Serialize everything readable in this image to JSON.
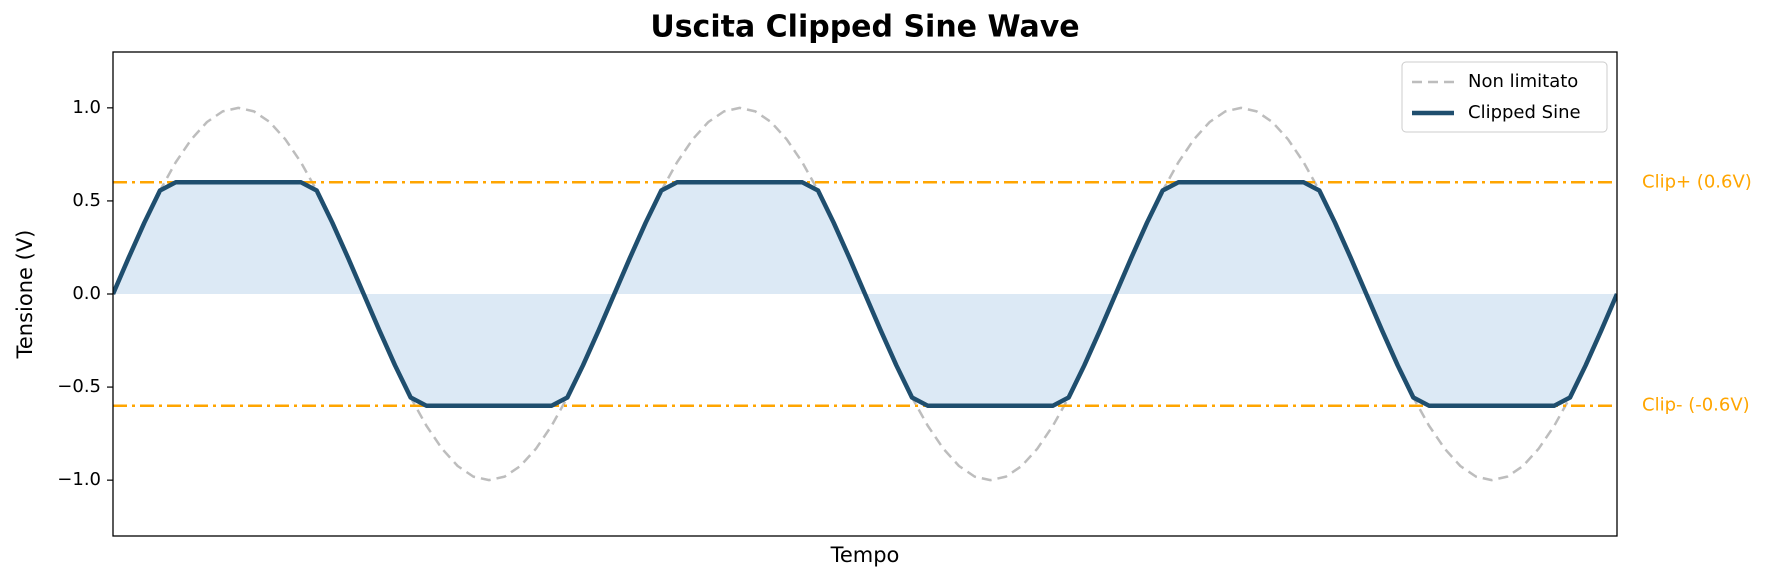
{
  "chart_data": {
    "type": "line",
    "title": "Uscita Clipped Sine Wave",
    "xlabel": "Tempo",
    "ylabel": "Tensione (V)",
    "x": [
      0,
      1,
      2,
      3,
      4,
      5,
      6,
      7,
      8,
      9,
      10,
      11,
      12,
      13,
      14,
      15,
      16,
      17,
      18,
      19,
      20,
      21,
      22,
      23,
      24,
      25,
      26,
      27,
      28,
      29,
      30,
      31,
      32,
      33,
      34,
      35,
      36,
      37,
      38,
      39,
      40,
      41,
      42,
      43,
      44,
      45,
      46,
      47,
      48,
      49,
      50,
      51,
      52,
      53,
      54,
      55,
      56,
      57,
      58,
      59,
      60,
      61,
      62,
      63,
      64,
      65,
      66,
      67,
      68,
      69,
      70,
      71,
      72,
      73,
      74,
      75,
      76,
      77,
      78,
      79,
      80,
      81,
      82,
      83,
      84,
      85,
      86,
      87,
      88,
      89,
      90,
      91,
      92,
      93,
      94,
      95,
      96
    ],
    "xlim": [
      0,
      96
    ],
    "ylim": [
      -1.3,
      1.3
    ],
    "yticks": [
      {
        "value": -1,
        "label": "−1.0"
      },
      {
        "value": -0.5,
        "label": "−0.5"
      },
      {
        "value": 0,
        "label": "0.0"
      },
      {
        "value": 0.5,
        "label": "0.5"
      },
      {
        "value": 1,
        "label": "1.0"
      }
    ],
    "legend": "upper right",
    "series": [
      {
        "name": "Non limitato",
        "color": "#bdbdbd",
        "style": "dashed",
        "width": 2.5,
        "values": [
          0,
          0.195,
          0.383,
          0.556,
          0.707,
          0.831,
          0.924,
          0.981,
          1,
          0.981,
          0.924,
          0.831,
          0.707,
          0.556,
          0.383,
          0.195,
          0,
          -0.195,
          -0.383,
          -0.556,
          -0.707,
          -0.831,
          -0.924,
          -0.981,
          -1,
          -0.981,
          -0.924,
          -0.831,
          -0.707,
          -0.556,
          -0.383,
          -0.195,
          0,
          0.195,
          0.383,
          0.556,
          0.707,
          0.831,
          0.924,
          0.981,
          1,
          0.981,
          0.924,
          0.831,
          0.707,
          0.556,
          0.383,
          0.195,
          0,
          -0.195,
          -0.383,
          -0.556,
          -0.707,
          -0.831,
          -0.924,
          -0.981,
          -1,
          -0.981,
          -0.924,
          -0.831,
          -0.707,
          -0.556,
          -0.383,
          -0.195,
          0,
          0.195,
          0.383,
          0.556,
          0.707,
          0.831,
          0.924,
          0.981,
          1,
          0.981,
          0.924,
          0.831,
          0.707,
          0.556,
          0.383,
          0.195,
          0,
          -0.195,
          -0.383,
          -0.556,
          -0.707,
          -0.831,
          -0.924,
          -0.981,
          -1,
          -0.981,
          -0.924,
          -0.831,
          -0.707,
          -0.556,
          -0.383,
          -0.195,
          0
        ]
      },
      {
        "name": "Clipped Sine",
        "color": "#1f4e6e",
        "style": "solid",
        "width": 4.5,
        "fill_color": "#dce9f5",
        "values": [
          0,
          0.195,
          0.383,
          0.556,
          0.6,
          0.6,
          0.6,
          0.6,
          0.6,
          0.6,
          0.6,
          0.6,
          0.6,
          0.556,
          0.383,
          0.195,
          0,
          -0.195,
          -0.383,
          -0.556,
          -0.6,
          -0.6,
          -0.6,
          -0.6,
          -0.6,
          -0.6,
          -0.6,
          -0.6,
          -0.6,
          -0.556,
          -0.383,
          -0.195,
          0,
          0.195,
          0.383,
          0.556,
          0.6,
          0.6,
          0.6,
          0.6,
          0.6,
          0.6,
          0.6,
          0.6,
          0.6,
          0.556,
          0.383,
          0.195,
          0,
          -0.195,
          -0.383,
          -0.556,
          -0.6,
          -0.6,
          -0.6,
          -0.6,
          -0.6,
          -0.6,
          -0.6,
          -0.6,
          -0.6,
          -0.556,
          -0.383,
          -0.195,
          0,
          0.195,
          0.383,
          0.556,
          0.6,
          0.6,
          0.6,
          0.6,
          0.6,
          0.6,
          0.6,
          0.6,
          0.6,
          0.556,
          0.383,
          0.195,
          0,
          -0.195,
          -0.383,
          -0.556,
          -0.6,
          -0.6,
          -0.6,
          -0.6,
          -0.6,
          -0.6,
          -0.6,
          -0.6,
          -0.6,
          -0.556,
          -0.383,
          -0.195,
          0
        ]
      }
    ],
    "hlines": [
      {
        "y": 0.6,
        "label": "Clip+ (0.6V)",
        "color": "#ffa500"
      },
      {
        "y": -0.6,
        "label": "Clip- (-0.6V)",
        "color": "#ffa500"
      }
    ]
  }
}
